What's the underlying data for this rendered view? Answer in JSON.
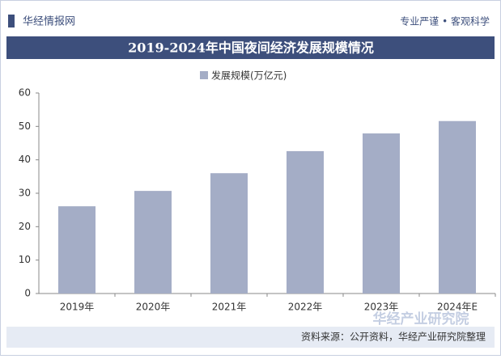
{
  "header": {
    "brand": "华经情报网",
    "slogan": "专业严谨 • 客观科学"
  },
  "chart_data": {
    "type": "bar",
    "title": "2019-2024年中国夜间经济发展规模情况",
    "categories": [
      "2019年",
      "2020年",
      "2021年",
      "2022年",
      "2023年",
      "2024年E"
    ],
    "series": [
      {
        "name": "发展规模(万亿元)",
        "color": "#a4adc6",
        "values": [
          26.1,
          30.7,
          36,
          42.6,
          47.9,
          51.6
        ]
      }
    ],
    "ylim": [
      0,
      60
    ],
    "yticks": [
      0,
      10,
      20,
      30,
      40,
      50,
      60
    ],
    "grid": false,
    "legend": "top"
  },
  "footer": {
    "source": "资料来源：公开资料，华经产业研究院整理",
    "watermark": "华经产业研究院"
  }
}
